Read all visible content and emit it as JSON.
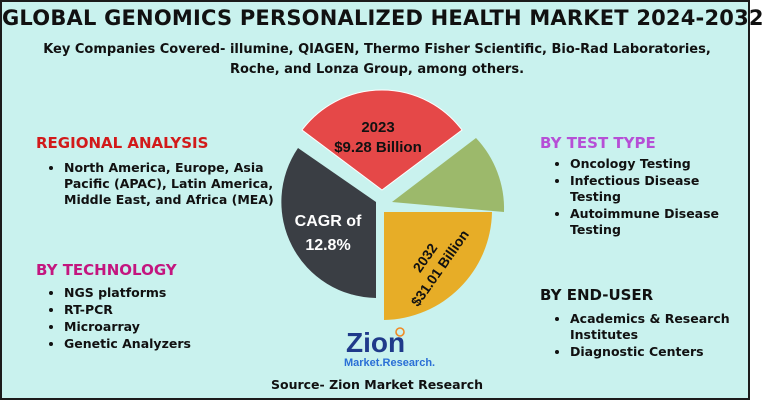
{
  "header": {
    "title": "GLOBAL GENOMICS PERSONALIZED HEALTH MARKET 2024-2032",
    "subtitle": "Key Companies Covered- illumine, QIAGEN, Thermo Fisher Scientific, Bio-Rad Laboratories, Roche, and Lonza Group, among others."
  },
  "regional": {
    "heading": "REGIONAL ANALYSIS",
    "color": "#d21a1a",
    "items": [
      "North America, Europe, Asia Pacific (APAC), Latin America, Middle East, and Africa (MEA)"
    ]
  },
  "technology": {
    "heading": "BY TECHNOLOGY",
    "color": "#c3167f",
    "items": [
      "NGS platforms",
      "RT-PCR",
      "Microarray",
      "Genetic Analyzers"
    ]
  },
  "test_type": {
    "heading": "BY TEST TYPE",
    "color": "#b64fd6",
    "items": [
      "Oncology Testing",
      "Infectious Disease Testing",
      "Autoimmune Disease Testing"
    ]
  },
  "end_user": {
    "heading": "BY END-USER",
    "color": "#111111",
    "items": [
      "Academics & Research Institutes",
      "Diagnostic Centers"
    ]
  },
  "pie": {
    "segment_2023_year": "2023",
    "segment_2023_value": "$9.28 Billion",
    "segment_2032_year": "2032",
    "segment_2032_value": "$31.01 Billion",
    "cagr_line1": "CAGR of",
    "cagr_line2": "12.8%",
    "colors": {
      "red": "#e54848",
      "green": "#9cb96b",
      "dark": "#3a3e44",
      "gold": "#e7ad27"
    }
  },
  "logo": {
    "word": "Zion",
    "tagline": "Market.Research."
  },
  "footer": {
    "source": "Source- Zion Market Research"
  }
}
